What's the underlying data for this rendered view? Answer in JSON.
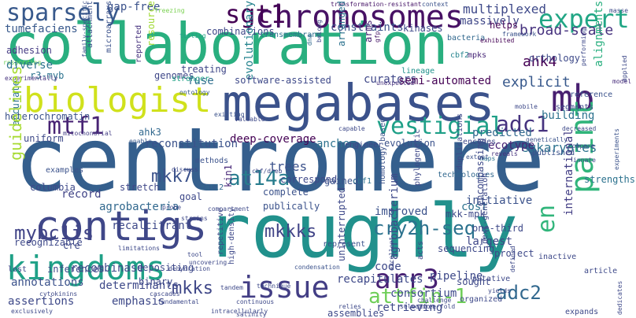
{
  "words": [
    {
      "text": "centromere",
      "color": "#355f8d"
    },
    {
      "text": "roughly",
      "color": "#21918c"
    },
    {
      "text": "collaboration",
      "color": "#29af7f"
    },
    {
      "text": "megabases",
      "color": "#3b528b"
    },
    {
      "text": "contigs",
      "color": "#3f4788"
    },
    {
      "text": "chromosomes",
      "color": "#471164"
    },
    {
      "text": "kingdoms",
      "color": "#1fa187"
    },
    {
      "text": "biologist",
      "color": "#d0e11c"
    },
    {
      "text": "mb",
      "color": "#481f70"
    },
    {
      "text": "paint",
      "color": "#31b57b"
    },
    {
      "text": "issue",
      "color": "#433e85"
    },
    {
      "text": "arr3",
      "color": "#482173"
    },
    {
      "text": "expert",
      "color": "#21a685"
    },
    {
      "text": "sparsely",
      "color": "#38598c"
    },
    {
      "text": "mtf1",
      "color": "#482374"
    },
    {
      "text": "vestigial",
      "color": "#1fa088"
    },
    {
      "text": "mybc1is",
      "color": "#414487"
    },
    {
      "text": "sgt1",
      "color": "#440154"
    },
    {
      "text": "cry2h-seq",
      "color": "#2c728e"
    },
    {
      "text": "attfin-1",
      "color": "#6ece58"
    },
    {
      "text": "adc1",
      "color": "#46337f"
    },
    {
      "text": "adc2",
      "color": "#31688e"
    },
    {
      "text": "at14a",
      "color": "#287d8e"
    },
    {
      "text": "mkk7",
      "color": "#3b528b"
    },
    {
      "text": "mkkks",
      "color": "#414487"
    },
    {
      "text": "mkks",
      "color": "#3f4788"
    },
    {
      "text": "en",
      "color": "#31b57b"
    },
    {
      "text": "tumefaciens",
      "color": "#38598c"
    },
    {
      "text": "gap-free",
      "color": "#3b528b"
    },
    {
      "text": "multiplexed",
      "color": "#3e4989"
    },
    {
      "text": "transformation-resistant",
      "color": "#481769"
    },
    {
      "text": "context",
      "color": "#3b528b"
    },
    {
      "text": "masse",
      "color": "#3e4a89"
    },
    {
      "text": "ahk4",
      "color": "#440154"
    },
    {
      "text": "massively",
      "color": "#3f4788"
    },
    {
      "text": "broad-scale",
      "color": "#46327e"
    },
    {
      "text": "helps",
      "color": "#440154"
    },
    {
      "text": "framework",
      "color": "#3b528b"
    },
    {
      "text": "combinations",
      "color": "#3f4788"
    },
    {
      "text": "constraints",
      "color": "#3b528b"
    },
    {
      "text": "kinases",
      "color": "#3e4989"
    },
    {
      "text": "bacteria",
      "color": "#31688e"
    },
    {
      "text": "transmembrane",
      "color": "#2c728e"
    },
    {
      "text": "adhesion",
      "color": "#443a83"
    },
    {
      "text": "responding",
      "color": "#6ece58"
    },
    {
      "text": "diverse",
      "color": "#2c728e"
    },
    {
      "text": "attachment",
      "color": "#3b528b"
    },
    {
      "text": "microarrays",
      "color": "#3b528b"
    },
    {
      "text": "reported",
      "color": "#46327e"
    },
    {
      "text": "treating",
      "color": "#3f4788"
    },
    {
      "text": "testing",
      "color": "#20a386"
    },
    {
      "text": "resource",
      "color": "#a2da37"
    },
    {
      "text": "evolutionary",
      "color": "#25848e"
    },
    {
      "text": "arranged",
      "color": "#2c728e"
    },
    {
      "text": "arms",
      "color": "#482374"
    },
    {
      "text": "gfp",
      "color": "#48186a"
    },
    {
      "text": "dna",
      "color": "#31688e"
    },
    {
      "text": "belong",
      "color": "#3e4989"
    },
    {
      "text": "cbf2",
      "color": "#25848e"
    },
    {
      "text": "mpks",
      "color": "#482878"
    },
    {
      "text": "orthology",
      "color": "#3e4a89"
    },
    {
      "text": "exhibited",
      "color": "#440154"
    },
    {
      "text": "performing",
      "color": "#3e4989"
    },
    {
      "text": "alignments",
      "color": "#29af7f"
    },
    {
      "text": "freezing",
      "color": "#7ad151"
    },
    {
      "text": "r3-myb",
      "color": "#2c728e"
    },
    {
      "text": "family-specific",
      "color": "#3b528b"
    },
    {
      "text": "experimentally",
      "color": "#46327e"
    },
    {
      "text": "genomes",
      "color": "#3f4788"
    },
    {
      "text": "stronger",
      "color": "#20a386"
    },
    {
      "text": "fuse",
      "color": "#2e6f8e"
    },
    {
      "text": "software-assisted",
      "color": "#3e4989"
    },
    {
      "text": "ontology",
      "color": "#38598c"
    },
    {
      "text": "curators",
      "color": "#3f4788"
    },
    {
      "text": "semi-automated",
      "color": "#440154"
    },
    {
      "text": "lineage",
      "color": "#21918c"
    },
    {
      "text": "unexpected",
      "color": "#46327e"
    },
    {
      "text": "explicit",
      "color": "#38598c"
    },
    {
      "text": "reference",
      "color": "#3b528b"
    },
    {
      "text": "model",
      "color": "#472d7b"
    },
    {
      "text": "applied",
      "color": "#3e4989"
    },
    {
      "text": "segments",
      "color": "#3f4788"
    },
    {
      "text": "heterochromatin",
      "color": "#3b528b"
    },
    {
      "text": "ahk3",
      "color": "#31688e"
    },
    {
      "text": "accurate",
      "color": "#2c728e"
    },
    {
      "text": "uniform",
      "color": "#3e4989"
    },
    {
      "text": "mitochondrial",
      "color": "#433e85"
    },
    {
      "text": "enable",
      "color": "#38598c"
    },
    {
      "text": "existing",
      "color": "#3b528b"
    },
    {
      "text": "valuable",
      "color": "#3e4989"
    },
    {
      "text": "capable",
      "color": "#3e4989"
    },
    {
      "text": "mobile",
      "color": "#3e4989"
    },
    {
      "text": "building",
      "color": "#2c728e"
    },
    {
      "text": "predicted",
      "color": "#31688e"
    },
    {
      "text": "genetically",
      "color": "#3b528b"
    },
    {
      "text": "decreased",
      "color": "#3e4989"
    },
    {
      "text": "eukaryotes",
      "color": "#2c728e"
    },
    {
      "text": "ecotype",
      "color": "#482475"
    },
    {
      "text": "encodes",
      "color": "#3e4989"
    },
    {
      "text": "published",
      "color": "#3b528b"
    },
    {
      "text": "reveals",
      "color": "#46327e"
    },
    {
      "text": "maps",
      "color": "#2c728e"
    },
    {
      "text": "compare",
      "color": "#3e4989"
    },
    {
      "text": "deep-coverage",
      "color": "#440154"
    },
    {
      "text": "anchor",
      "color": "#2c728e"
    },
    {
      "text": "reconstitution",
      "color": "#3b528b"
    },
    {
      "text": "engineer",
      "color": "#3e4989"
    },
    {
      "text": "evolution",
      "color": "#3b528b"
    },
    {
      "text": "guidelines",
      "color": "#a8db34"
    },
    {
      "text": "examples",
      "color": "#3b528b"
    },
    {
      "text": "columbia",
      "color": "#3e4989"
    },
    {
      "text": "record",
      "color": "#414487"
    },
    {
      "text": "trees",
      "color": "#3b528b"
    },
    {
      "text": "cbf/dreb",
      "color": "#3e4989"
    },
    {
      "text": "correspond",
      "color": "#3e4989"
    },
    {
      "text": "gained",
      "color": "#3b528b"
    },
    {
      "text": "cbf1",
      "color": "#2c728e"
    },
    {
      "text": "homology-based",
      "color": "#3b528b"
    },
    {
      "text": "phylogenetic",
      "color": "#3e4989"
    },
    {
      "text": "technologies",
      "color": "#31688e"
    },
    {
      "text": "duplications",
      "color": "#3e4989"
    },
    {
      "text": "extent",
      "color": "#3b528b"
    },
    {
      "text": "innate",
      "color": "#3e4989"
    },
    {
      "text": "experiments",
      "color": "#3b528b"
    },
    {
      "text": "strengths",
      "color": "#2c728e"
    },
    {
      "text": "discuss",
      "color": "#3e4989"
    },
    {
      "text": "methods",
      "color": "#3b528b"
    },
    {
      "text": "stretch",
      "color": "#3f4788"
    },
    {
      "text": "goal",
      "color": "#3e4989"
    },
    {
      "text": "zat12",
      "color": "#31688e"
    },
    {
      "text": "kin1",
      "color": "#482878"
    },
    {
      "text": "complete",
      "color": "#3b528b"
    },
    {
      "text": "publically",
      "color": "#3b528b"
    },
    {
      "text": "cost",
      "color": "#2c728e"
    },
    {
      "text": "encompassing",
      "color": "#3e4989"
    },
    {
      "text": "agrobacteria",
      "color": "#31688e"
    },
    {
      "text": "probe",
      "color": "#3e4989"
    },
    {
      "text": "compartment",
      "color": "#3e4989"
    },
    {
      "text": "strains",
      "color": "#3e4989"
    },
    {
      "text": "recalcitrant",
      "color": "#3e4989"
    },
    {
      "text": "improved",
      "color": "#3b528b"
    },
    {
      "text": "initiative",
      "color": "#3b528b"
    },
    {
      "text": "international",
      "color": "#433e85"
    },
    {
      "text": "mkk-mpk",
      "color": "#3e4989"
    },
    {
      "text": "one-third",
      "color": "#3e4989"
    },
    {
      "text": "largest",
      "color": "#3f4788"
    },
    {
      "text": "recognizable",
      "color": "#3e4989"
    },
    {
      "text": "cre",
      "color": "#3e4989"
    },
    {
      "text": "limitations",
      "color": "#3e4989"
    },
    {
      "text": "tool",
      "color": "#3e4989"
    },
    {
      "text": "uncovering",
      "color": "#3e4989"
    },
    {
      "text": "represent",
      "color": "#3b528b"
    },
    {
      "text": "sequencing",
      "color": "#3e4989"
    },
    {
      "text": "next-generation",
      "color": "#3e4989"
    },
    {
      "text": "lost",
      "color": "#3e4989"
    },
    {
      "text": "annotations",
      "color": "#3b528b"
    },
    {
      "text": "recombinase",
      "color": "#3e4989"
    },
    {
      "text": "inferences",
      "color": "#3e4989"
    },
    {
      "text": "depositing",
      "color": "#3e4989"
    },
    {
      "text": "binary",
      "color": "#3e4989"
    },
    {
      "text": "high-density",
      "color": "#3e4989"
    },
    {
      "text": "repetitive",
      "color": "#3e4989"
    },
    {
      "text": "tandem",
      "color": "#3e4989"
    },
    {
      "text": "cytokinins",
      "color": "#3e4989"
    },
    {
      "text": "cascades",
      "color": "#3e4989"
    },
    {
      "text": "dehydration",
      "color": "#3e4989"
    },
    {
      "text": "fundamental",
      "color": "#3e4989"
    },
    {
      "text": "continuous",
      "color": "#3e4989"
    },
    {
      "text": "technique",
      "color": "#3e4989"
    },
    {
      "text": "condensation",
      "color": "#3b528b"
    },
    {
      "text": "recapitulates",
      "color": "#3e4989"
    },
    {
      "text": "uninterrupted",
      "color": "#3e4989"
    },
    {
      "text": "code",
      "color": "#3e4989"
    },
    {
      "text": "pipeline",
      "color": "#3e4989"
    },
    {
      "text": "sought",
      "color": "#3e4989"
    },
    {
      "text": "project",
      "color": "#3e4989"
    },
    {
      "text": "inactive",
      "color": "#3e4989"
    },
    {
      "text": "article",
      "color": "#3e4989"
    },
    {
      "text": "putative",
      "color": "#3e4989"
    },
    {
      "text": "defined",
      "color": "#3e4989"
    },
    {
      "text": "yields",
      "color": "#3e4989"
    },
    {
      "text": "organized",
      "color": "#3e4989"
    },
    {
      "text": "dedicates",
      "color": "#3e4989"
    },
    {
      "text": "consortium",
      "color": "#3e4989"
    },
    {
      "text": "retrieving",
      "color": "#3e4989"
    },
    {
      "text": "assertions",
      "color": "#3e4989"
    },
    {
      "text": "emphasis",
      "color": "#3e4989"
    },
    {
      "text": "determinants",
      "color": "#3e4989"
    },
    {
      "text": "exclusively",
      "color": "#3e4989"
    },
    {
      "text": "intracellularly",
      "color": "#3e4989"
    },
    {
      "text": "salinity",
      "color": "#3e4989"
    },
    {
      "text": "selection",
      "color": "#3e4989"
    },
    {
      "text": "relies",
      "color": "#3e4989"
    },
    {
      "text": "challenge",
      "color": "#3e4989"
    },
    {
      "text": "three-fold",
      "color": "#3e4989"
    },
    {
      "text": "assemblies",
      "color": "#3e4989"
    },
    {
      "text": "expands",
      "color": "#3e4989"
    },
    {
      "text": "excellent",
      "color": "#3e4989"
    },
    {
      "text": "agrobacterium",
      "color": "#3e4989"
    },
    {
      "text": "acts",
      "color": "#3e4989"
    }
  ]
}
